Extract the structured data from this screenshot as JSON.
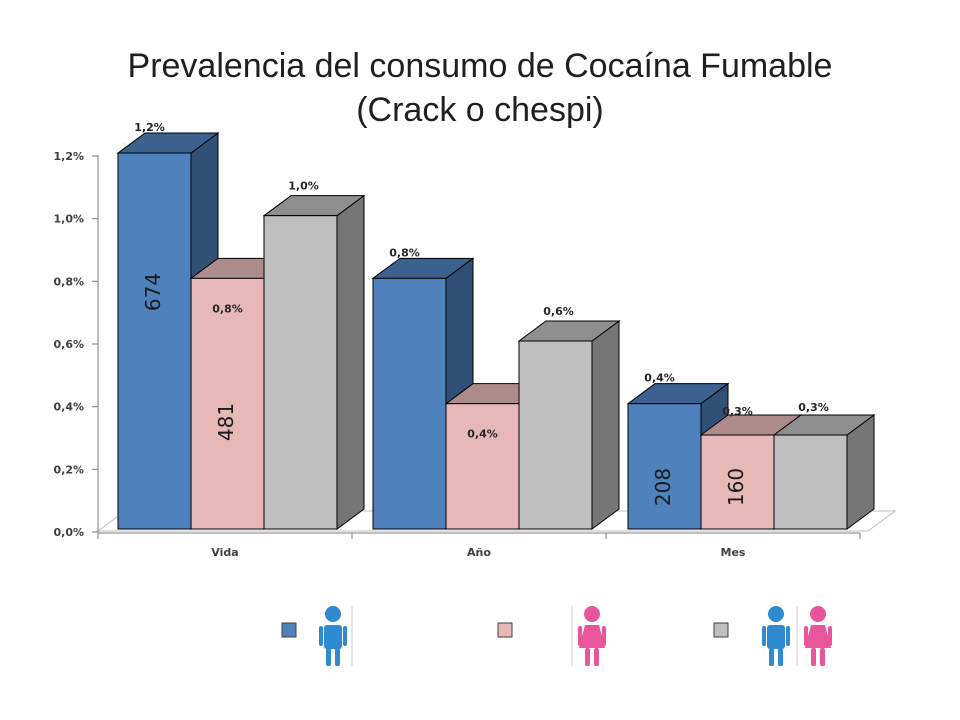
{
  "title_line1": "Prevalencia del consumo de Cocaína Fumable",
  "title_line2": "(Crack o chespi)",
  "chart_data": {
    "type": "bar",
    "categories": [
      "Vida",
      "Año",
      "Mes"
    ],
    "series": [
      {
        "values": [
          1.2,
          0.8,
          0.4
        ],
        "labels": [
          "1,2%",
          "0,8%",
          "0,4%"
        ],
        "color": "#4f81bd",
        "legend_icon": "male-figure-icon"
      },
      {
        "values": [
          0.8,
          0.4,
          0.3
        ],
        "labels": [
          "0,8%",
          "0,4%",
          "0,3%"
        ],
        "color": "#e6b9b8",
        "legend_icon": "female-figure-icon"
      },
      {
        "values": [
          1.0,
          0.6,
          0.3
        ],
        "labels": [
          "1,0%",
          "0,6%",
          "0,3%"
        ],
        "color": "#bfbfbf",
        "legend_icon": "male-female-figures-icon"
      }
    ],
    "yticks": [
      "0,0%",
      "0,2%",
      "0,4%",
      "0,6%",
      "0,8%",
      "1,0%",
      "1,2%"
    ],
    "ylim": [
      0,
      1.2
    ],
    "style": "3d-clustered-column",
    "grid": false,
    "legend_position": "bottom",
    "bar_annotations": [
      {
        "text": "674",
        "category": 0,
        "series": 0
      },
      {
        "text": "481",
        "category": 0,
        "series": 1
      },
      {
        "text": "208",
        "category": 2,
        "series": 0
      },
      {
        "text": "160",
        "category": 2,
        "series": 1
      }
    ]
  }
}
